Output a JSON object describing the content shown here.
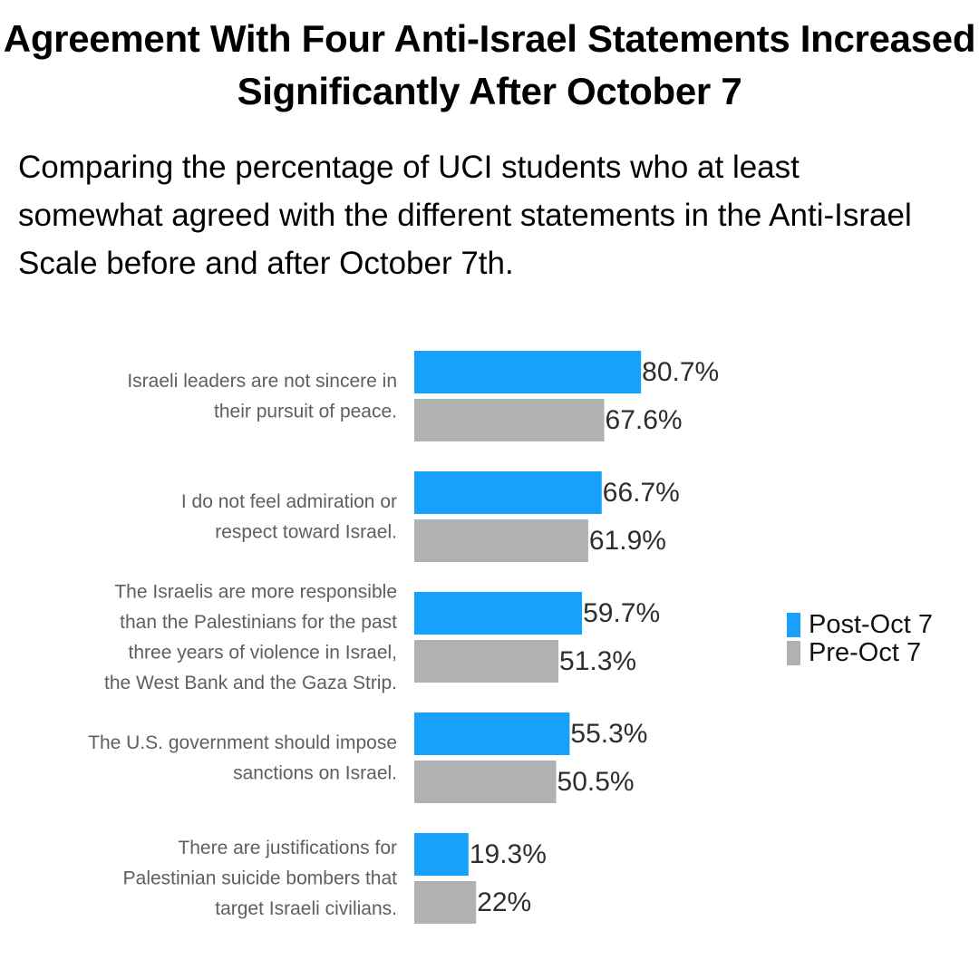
{
  "title": "Agreement With Four Anti-Israel Statements Increased Significantly After October 7",
  "subtitle": "Comparing the percentage of UCI students who at least somewhat agreed with the different statements in the Anti-Israel Scale before and after October 7th.",
  "chart_data": {
    "type": "bar",
    "orientation": "horizontal",
    "categories": [
      [
        "Israeli leaders are not sincere in",
        "their pursuit of peace."
      ],
      [
        "I do not feel admiration or",
        "respect toward Israel."
      ],
      [
        "The Israelis are more responsible",
        "than the Palestinians for the past",
        "three years of violence in Israel,",
        "the West Bank and the Gaza Strip."
      ],
      [
        "The U.S. government should impose",
        "sanctions on Israel."
      ],
      [
        "There are justifications for",
        "Palestinian suicide bombers that",
        "target Israeli civilians."
      ]
    ],
    "series": [
      {
        "name": "Post-Oct 7",
        "color": "#18a1fc",
        "values": [
          80.7,
          66.7,
          59.7,
          55.3,
          19.3
        ],
        "labels": [
          "80.7%",
          "66.7%",
          "59.7%",
          "55.3%",
          "19.3%"
        ]
      },
      {
        "name": "Pre-Oct 7",
        "color": "#b0b1b3",
        "values": [
          67.6,
          61.9,
          51.3,
          50.5,
          22
        ],
        "labels": [
          "67.6%",
          "61.9%",
          "51.3%",
          "50.5%",
          "22%"
        ]
      }
    ],
    "xlim": [
      0,
      100
    ],
    "grid": false,
    "legend_position": "right"
  }
}
